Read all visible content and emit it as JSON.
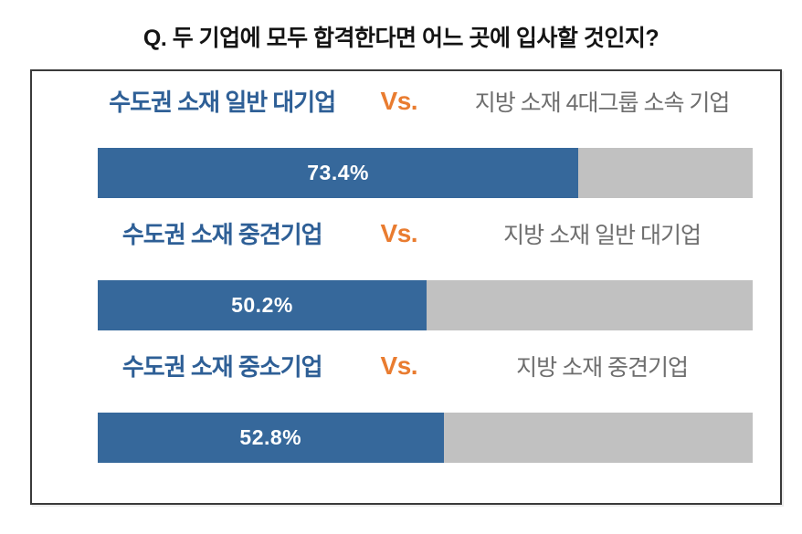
{
  "title": {
    "text": "Q. 두 기업에 모두 합격한다면 어느 곳에 입사할 것인지?"
  },
  "colors": {
    "bar_fill": "#36689b",
    "bar_track": "#c1c1c1",
    "left_label_text": "#2e5f96",
    "vs_text": "#e97c30",
    "right_label_text": "#6e6e6e",
    "value_text": "#ffffff",
    "panel_border": "#3a3a3a",
    "title_text": "#141414"
  },
  "chart_data": {
    "type": "bar",
    "orientation": "horizontal",
    "title": "Q. 두 기업에 모두 합격한다면 어느 곳에 입사할 것인지?",
    "xlim": [
      0,
      100
    ],
    "unit": "%",
    "grid": false,
    "legend": false,
    "categories": [
      "수도권 소재 일반 대기업 vs 지방 소재 4대그룹 소속 기업",
      "수도권 소재 중견기업 vs 지방 소재 일반 대기업",
      "수도권 소재 중소기업 vs 지방 소재 중견기업"
    ],
    "values": [
      73.4,
      50.2,
      52.8
    ],
    "comparisons": [
      {
        "left_label": "수도권 소재 일반 대기업",
        "vs_label": "Vs.",
        "right_label": "지방 소재 4대그룹 소속 기업",
        "left_value_pct": 73.4,
        "value_label": "73.4%"
      },
      {
        "left_label": "수도권 소재 중견기업",
        "vs_label": "Vs.",
        "right_label": "지방 소재 일반 대기업",
        "left_value_pct": 50.2,
        "value_label": "50.2%"
      },
      {
        "left_label": "수도권 소재 중소기업",
        "vs_label": "Vs.",
        "right_label": "지방 소재 중견기업",
        "left_value_pct": 52.8,
        "value_label": "52.8%"
      }
    ]
  }
}
